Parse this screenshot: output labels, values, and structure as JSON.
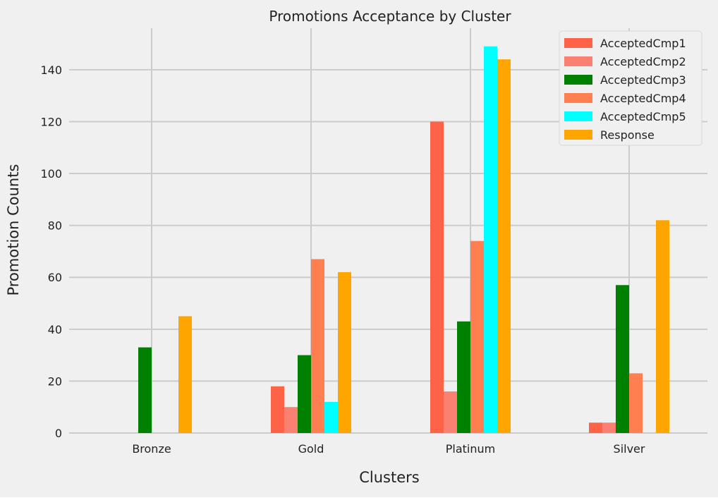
{
  "chart_data": {
    "type": "bar",
    "title": "Promotions Acceptance by Cluster",
    "xlabel": "Clusters",
    "ylabel": "Promotion Counts",
    "categories": [
      "Bronze",
      "Gold",
      "Platinum",
      "Silver"
    ],
    "ylim": [
      0,
      156
    ],
    "yticks": [
      0,
      20,
      40,
      60,
      80,
      100,
      120,
      140
    ],
    "grid": true,
    "legend_position": "top-right",
    "series": [
      {
        "name": "AcceptedCmp1",
        "color": "#ff6347",
        "values": [
          0,
          18,
          120,
          4
        ]
      },
      {
        "name": "AcceptedCmp2",
        "color": "#fa8072",
        "values": [
          0,
          10,
          16,
          4
        ]
      },
      {
        "name": "AcceptedCmp3",
        "color": "#008000",
        "values": [
          33,
          30,
          43,
          57
        ]
      },
      {
        "name": "AcceptedCmp4",
        "color": "#ff7f50",
        "values": [
          0,
          67,
          74,
          23
        ]
      },
      {
        "name": "AcceptedCmp5",
        "color": "#00ffff",
        "values": [
          0,
          12,
          149,
          0
        ]
      },
      {
        "name": "Response",
        "color": "#ffa500",
        "values": [
          45,
          62,
          144,
          82
        ]
      }
    ]
  }
}
